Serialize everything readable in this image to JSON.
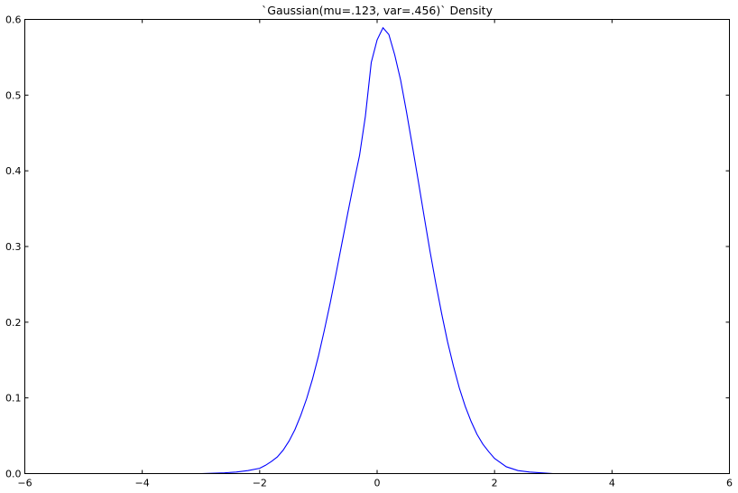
{
  "chart_data": {
    "type": "line",
    "title": "`Gaussian(mu=.123, var=.456)` Density",
    "xlabel": "",
    "ylabel": "",
    "xlim": [
      -6,
      6
    ],
    "ylim": [
      0,
      0.6
    ],
    "x_ticks": [
      -6,
      -4,
      -2,
      0,
      2,
      4,
      6
    ],
    "x_tick_labels": [
      "−6",
      "−4",
      "−2",
      "0",
      "2",
      "4",
      "6"
    ],
    "y_ticks": [
      0,
      0.1,
      0.2,
      0.3,
      0.4,
      0.5,
      0.6
    ],
    "y_tick_labels": [
      "0.0",
      "0.1",
      "0.2",
      "0.3",
      "0.4",
      "0.5",
      "0.6"
    ],
    "grid": false,
    "line_color": "#0000ff",
    "series": [
      {
        "x": [
          -5,
          -4.5,
          -4,
          -3.5,
          -3,
          -2.6,
          -2.4,
          -2.2,
          -2,
          -1.9,
          -1.8,
          -1.7,
          -1.6,
          -1.5,
          -1.4,
          -1.3,
          -1.2,
          -1.1,
          -1,
          -0.9,
          -0.8,
          -0.7,
          -0.6,
          -0.5,
          -0.4,
          -0.3,
          -0.2,
          -0.1,
          0,
          0.1,
          0.2,
          0.3,
          0.4,
          0.5,
          0.6,
          0.7,
          0.8,
          0.9,
          1,
          1.1,
          1.2,
          1.3,
          1.4,
          1.5,
          1.6,
          1.7,
          1.8,
          1.9,
          2,
          2.2,
          2.4,
          2.6,
          2.8,
          3,
          3.5,
          4,
          4.5,
          5
        ],
        "y": [
          0,
          0,
          0,
          0,
          0,
          0.001,
          0.002,
          0.004,
          0.007,
          0.011,
          0.016,
          0.022,
          0.031,
          0.043,
          0.058,
          0.077,
          0.099,
          0.125,
          0.155,
          0.189,
          0.225,
          0.264,
          0.304,
          0.344,
          0.383,
          0.42,
          0.472,
          0.543,
          0.573,
          0.589,
          0.58,
          0.553,
          0.52,
          0.478,
          0.433,
          0.387,
          0.34,
          0.294,
          0.251,
          0.211,
          0.174,
          0.142,
          0.113,
          0.089,
          0.069,
          0.052,
          0.039,
          0.029,
          0.02,
          0.009,
          0.004,
          0.002,
          0.001,
          0,
          0,
          0,
          0,
          0
        ]
      }
    ]
  }
}
